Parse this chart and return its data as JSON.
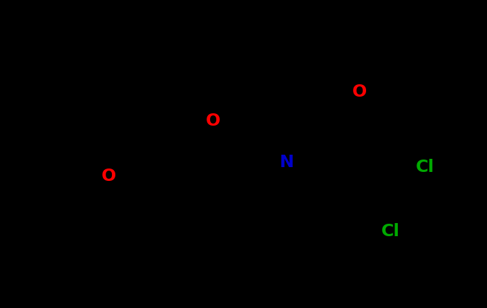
{
  "background_color": "#000000",
  "bond_color": "#000000",
  "bond_width": 2.0,
  "atom_colors": {
    "O": "#ff0000",
    "N": "#0000cc",
    "Cl": "#00aa00",
    "C": "#000000"
  },
  "font_size_atoms": 18,
  "fig_width": 7.05,
  "fig_height": 4.46,
  "xlim": [
    0,
    705
  ],
  "ylim": [
    0,
    446
  ]
}
